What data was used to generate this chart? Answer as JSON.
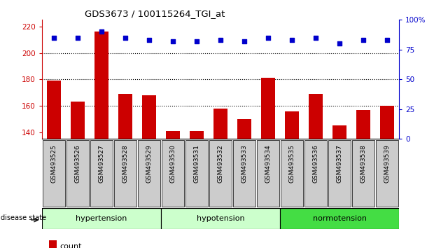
{
  "title": "GDS3673 / 100115264_TGI_at",
  "samples": [
    "GSM493525",
    "GSM493526",
    "GSM493527",
    "GSM493528",
    "GSM493529",
    "GSM493530",
    "GSM493531",
    "GSM493532",
    "GSM493533",
    "GSM493534",
    "GSM493535",
    "GSM493536",
    "GSM493537",
    "GSM493538",
    "GSM493539"
  ],
  "count_values": [
    179,
    163,
    216,
    169,
    168,
    141,
    141,
    158,
    150,
    181,
    156,
    169,
    145,
    157,
    160
  ],
  "percentile_values": [
    85,
    85,
    90,
    85,
    83,
    82,
    82,
    83,
    82,
    85,
    83,
    85,
    80,
    83,
    83
  ],
  "ylim_left": [
    135,
    225
  ],
  "ylim_right": [
    0,
    100
  ],
  "yticks_left": [
    140,
    160,
    180,
    200,
    220
  ],
  "yticks_right": [
    0,
    25,
    50,
    75,
    100
  ],
  "bar_color": "#cc0000",
  "dot_color": "#0000cc",
  "tick_color_left": "#cc0000",
  "tick_color_right": "#0000cc",
  "bar_width": 0.6,
  "group_configs": [
    {
      "label": "hypertension",
      "start": 0,
      "end": 4,
      "color": "#ccffcc"
    },
    {
      "label": "hypotension",
      "start": 5,
      "end": 9,
      "color": "#ccffcc"
    },
    {
      "label": "normotension",
      "start": 10,
      "end": 14,
      "color": "#44dd44"
    }
  ],
  "xticklabel_bg": "#cccccc",
  "disease_state_label": "disease state",
  "legend_count_color": "#cc0000",
  "legend_pct_color": "#0000cc"
}
